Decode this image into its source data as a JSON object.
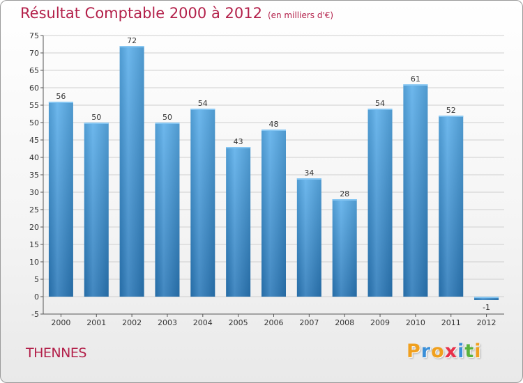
{
  "header": {
    "title": "Résultat Comptable 2000 à 2012",
    "subtitle": "(en milliers d'€)"
  },
  "footer": {
    "place": "THENNES",
    "logo_letters": [
      "P",
      "r",
      "o",
      "x",
      "i",
      "t",
      "i"
    ],
    "logo_colors": [
      "#f0a01e",
      "#3a8fd8",
      "#f0a01e",
      "#e8304a",
      "#3a8fd8",
      "#59b23c",
      "#f0a01e"
    ]
  },
  "colors": {
    "bar_top": "#5aaeea",
    "bar_bottom": "#2a78b8",
    "grid": "#cfcfcf",
    "axis": "#555555",
    "accent": "#b3204a"
  },
  "chart_data": {
    "type": "bar",
    "title": "Résultat Comptable 2000 à 2012",
    "subtitle": "(en milliers d'€)",
    "categories": [
      "2000",
      "2001",
      "2002",
      "2003",
      "2004",
      "2005",
      "2006",
      "2007",
      "2008",
      "2009",
      "2010",
      "2011",
      "2012"
    ],
    "values": [
      56,
      50,
      72,
      50,
      54,
      43,
      48,
      34,
      28,
      54,
      61,
      52,
      -1
    ],
    "ylim": [
      -5,
      75
    ],
    "ytick_step": 5,
    "xlabel": "",
    "ylabel": "",
    "grid": true
  }
}
